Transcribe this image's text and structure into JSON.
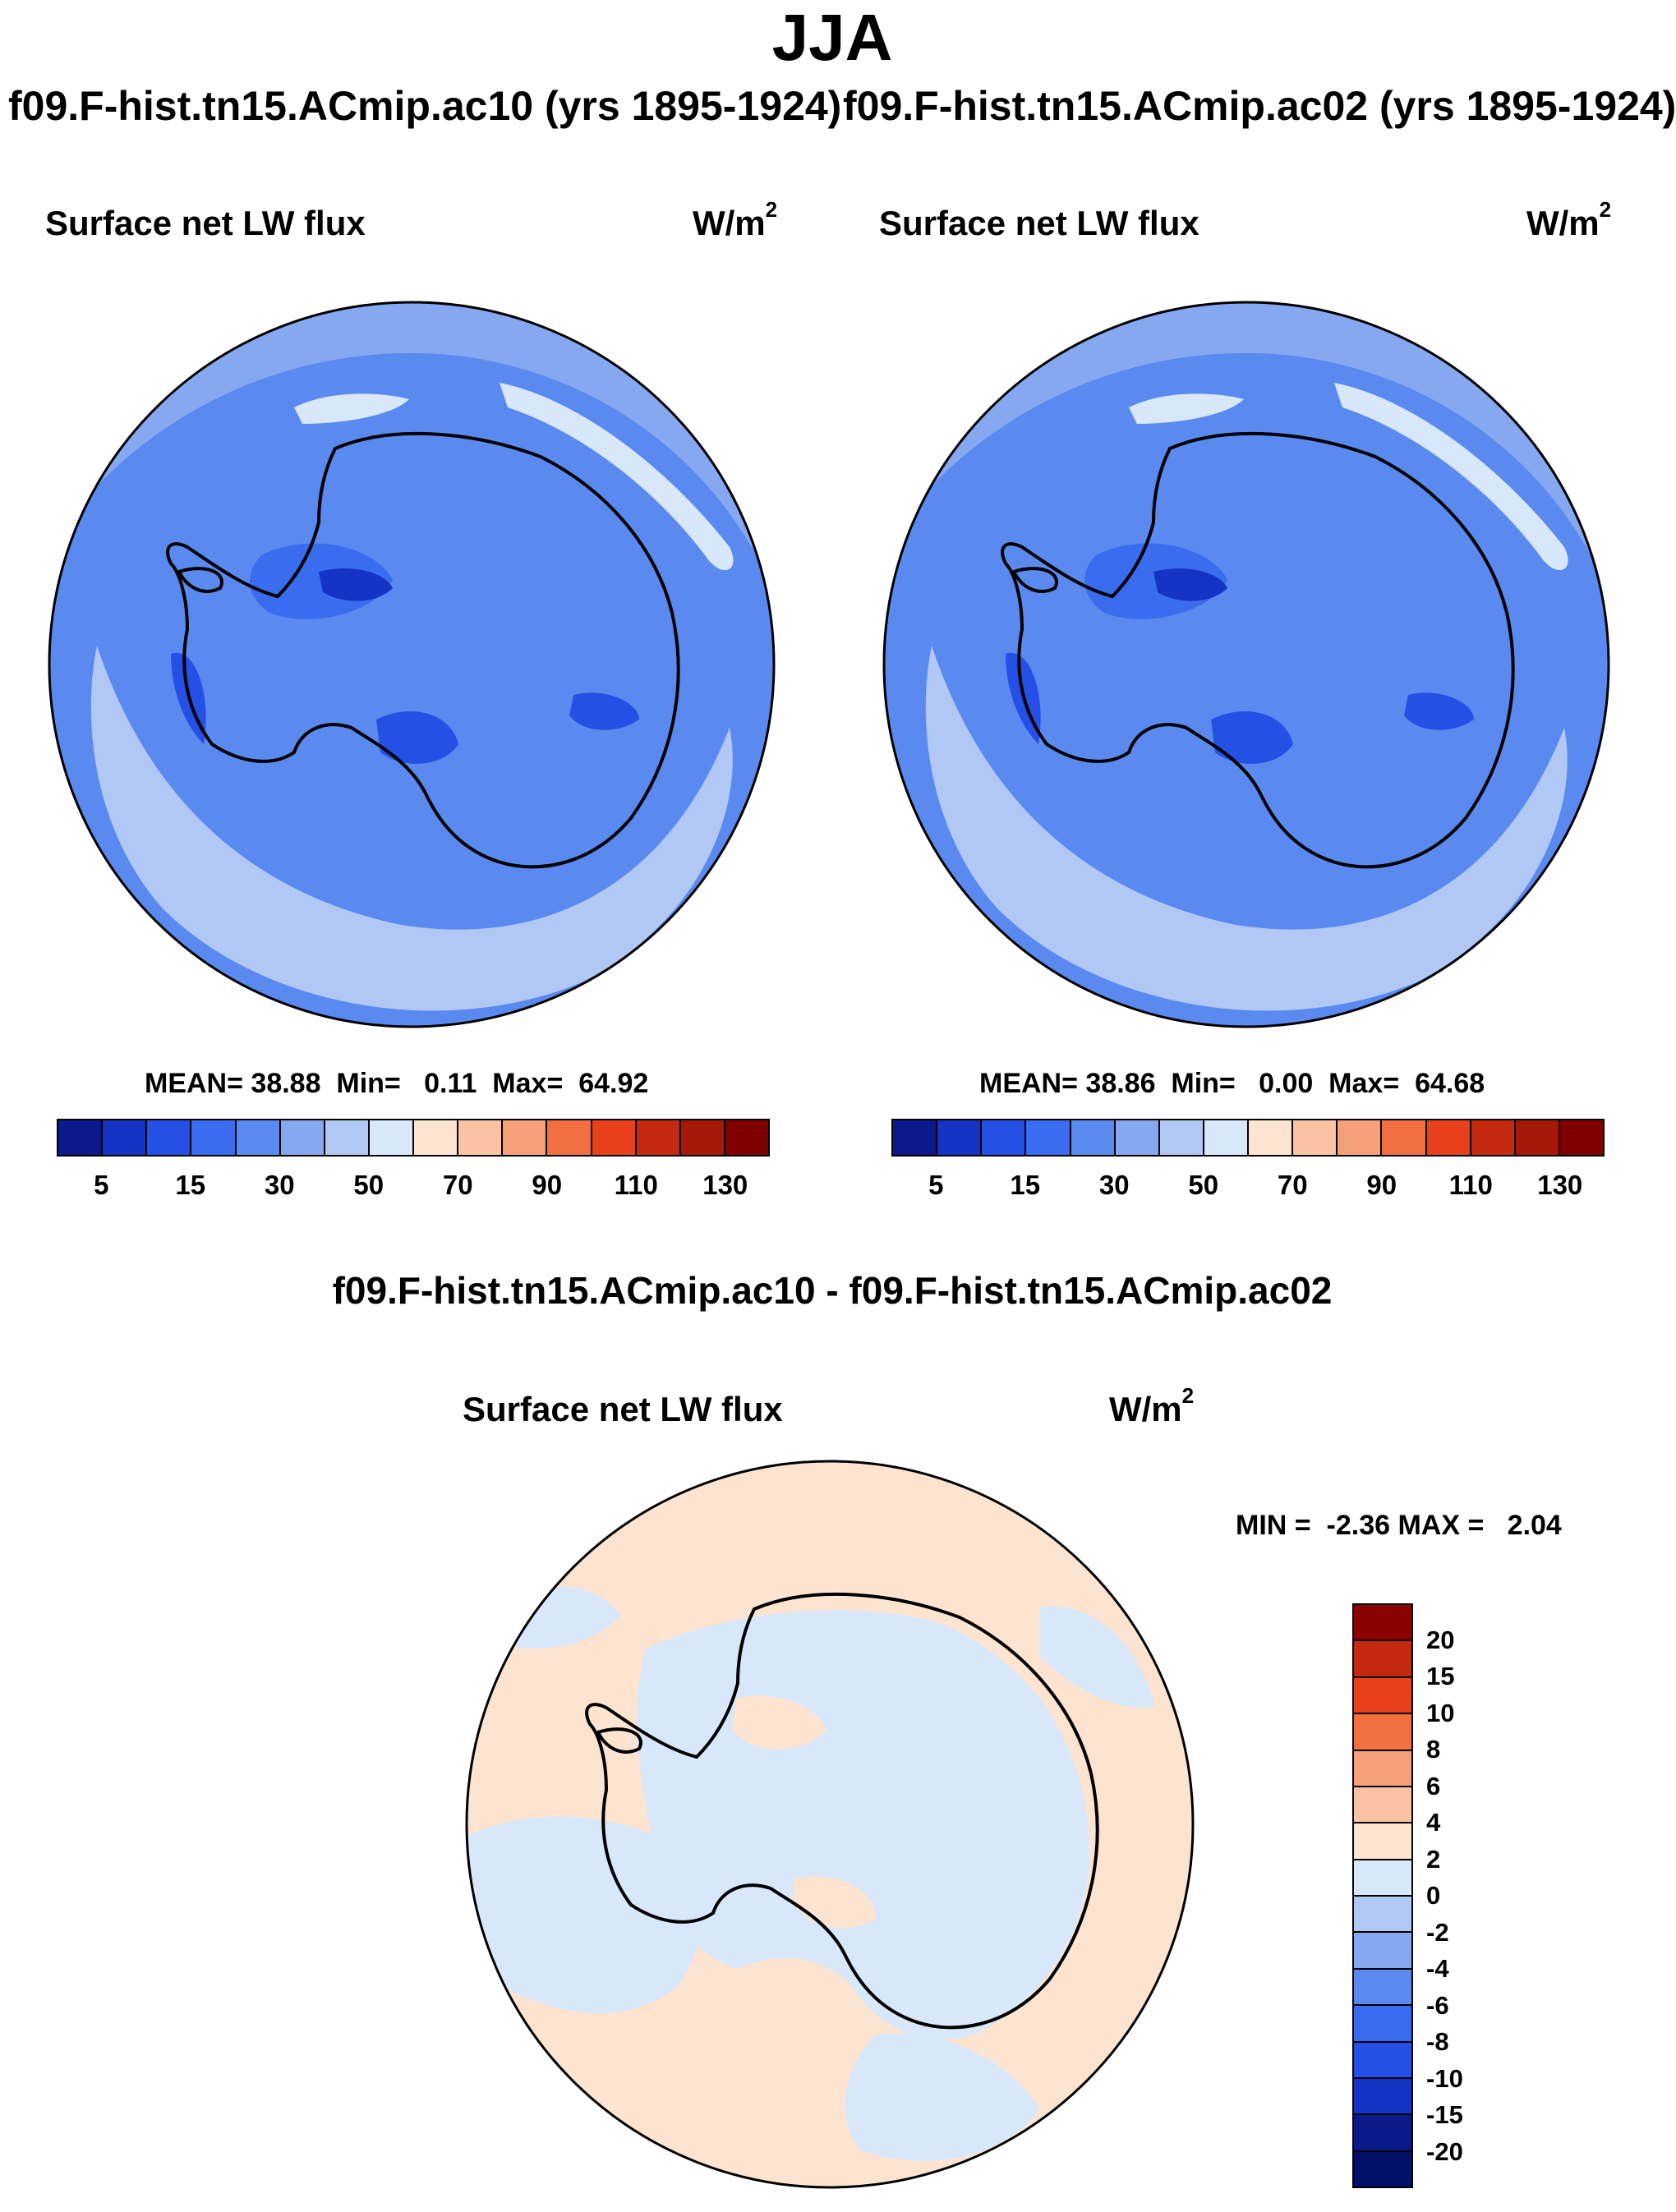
{
  "figure": {
    "title": "JJA",
    "left_run": "f09.F-hist.tn15.ACmip.ac10 (yrs 1895-1924)",
    "right_run": "f09.F-hist.tn15.ACmip.ac02 (yrs 1895-1924)",
    "diff_title": "f09.F-hist.tn15.ACmip.ac10 - f09.F-hist.tn15.ACmip.ac02"
  },
  "units": {
    "base": "W/m",
    "exponent": "2"
  },
  "panels": [
    {
      "id": "ac10",
      "variable": "Surface net LW flux",
      "stats_text": "MEAN= 38.88  Min=   0.11  Max=  64.92",
      "mean": 38.88,
      "min": 0.11,
      "max": 64.92
    },
    {
      "id": "ac02",
      "variable": "Surface net LW flux",
      "stats_text": "MEAN= 38.86  Min=   0.00  Max=  64.68",
      "mean": 38.86,
      "min": 0.0,
      "max": 64.68
    }
  ],
  "difference": {
    "variable": "Surface net LW flux",
    "stats_text": "MIN =  -2.36 MAX =   2.04",
    "min": -2.36,
    "max": 2.04
  },
  "colorbar_abs": {
    "labels": [
      "5",
      "15",
      "30",
      "50",
      "70",
      "90",
      "110",
      "130"
    ],
    "colors": [
      "#0a1a8a",
      "#1533c4",
      "#2450e6",
      "#3a6cf0",
      "#5a8af0",
      "#86a8f0",
      "#b2c8f4",
      "#d8e8fa",
      "#fde4d0",
      "#fbc2a4",
      "#f6a07a",
      "#f27040",
      "#e8401a",
      "#c42a10",
      "#a61808",
      "#800000"
    ]
  },
  "colorbar_diff": {
    "labels": [
      "20",
      "15",
      "10",
      "8",
      "6",
      "4",
      "2",
      "0",
      "-2",
      "-4",
      "-6",
      "-8",
      "-10",
      "-15",
      "-20"
    ],
    "colors": [
      "#8b0000",
      "#c42a10",
      "#e8401a",
      "#f27040",
      "#f6a07a",
      "#fbc2a4",
      "#fde4d0",
      "#d8e8fa",
      "#b2c8f4",
      "#86a8f0",
      "#5a8af0",
      "#3a6cf0",
      "#2450e6",
      "#1533c4",
      "#0a1a8a",
      "#02106a"
    ]
  },
  "map_colors": {
    "abs_base": "#86a8f0",
    "abs_band": "#5a8af0",
    "abs_light": "#b2c8f4",
    "abs_lighter": "#d8e8fa",
    "abs_mid": "#3a6cf0",
    "abs_dark": "#2450e6",
    "abs_darker": "#1533c4",
    "diff_pos": "#fde4d0",
    "diff_neg": "#d8e8fa"
  }
}
